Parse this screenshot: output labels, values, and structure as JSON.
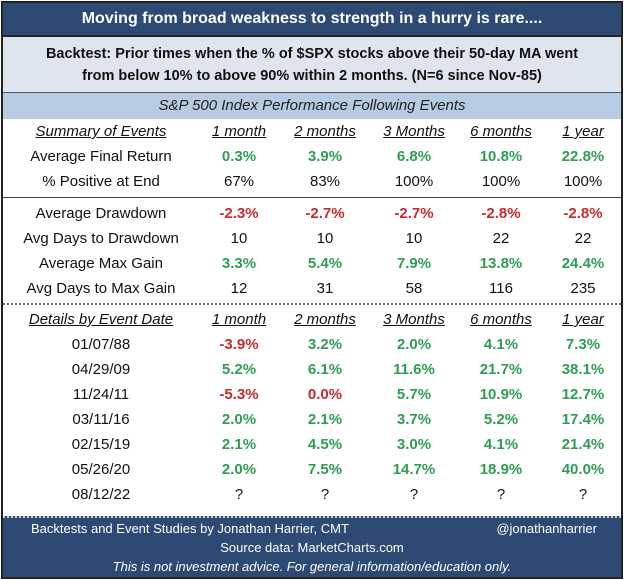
{
  "title": "Moving from broad weakness to strength in a hurry is rare....",
  "subtitle_line1": "Backtest:  Prior times when the % of $SPX stocks above their 50-day MA went",
  "subtitle_line2": "from below 10% to above 90% within 2 months. (N=6 since Nov-85)",
  "section_title": "S&P 500 Index Performance Following Events",
  "colors": {
    "header_bg": "#2c4a73",
    "positive": "#2e9d52",
    "negative": "#c42b2f",
    "section_bg": "#b7cbe2"
  },
  "summary": {
    "header": [
      "Summary of Events",
      "1 month",
      "2 months",
      "3 Months",
      "6 months",
      "1 year"
    ],
    "rows": [
      {
        "cells": [
          "Average Final Return",
          "0.3%",
          "3.9%",
          "6.8%",
          "10.8%",
          "22.8%"
        ],
        "tones": [
          "n",
          "g",
          "g",
          "g",
          "g",
          "g"
        ]
      },
      {
        "cells": [
          "% Positive at End",
          "67%",
          "83%",
          "100%",
          "100%",
          "100%"
        ],
        "tones": [
          "n",
          "n",
          "n",
          "n",
          "n",
          "n"
        ]
      }
    ]
  },
  "drawdown": {
    "rows": [
      {
        "cells": [
          "Average Drawdown",
          "-2.3%",
          "-2.7%",
          "-2.7%",
          "-2.8%",
          "-2.8%"
        ],
        "tones": [
          "n",
          "r",
          "r",
          "r",
          "r",
          "r"
        ]
      },
      {
        "cells": [
          "Avg Days to Drawdown",
          "10",
          "10",
          "10",
          "22",
          "22"
        ],
        "tones": [
          "n",
          "n",
          "n",
          "n",
          "n",
          "n"
        ]
      },
      {
        "cells": [
          "Average Max Gain",
          "3.3%",
          "5.4%",
          "7.9%",
          "13.8%",
          "24.4%"
        ],
        "tones": [
          "n",
          "g",
          "g",
          "g",
          "g",
          "g"
        ]
      },
      {
        "cells": [
          "Avg Days to Max Gain",
          "12",
          "31",
          "58",
          "116",
          "235"
        ],
        "tones": [
          "n",
          "n",
          "n",
          "n",
          "n",
          "n"
        ]
      }
    ]
  },
  "details": {
    "header": [
      "Details by Event Date",
      "1 month",
      "2 months",
      "3 Months",
      "6 months",
      "1 year"
    ],
    "rows": [
      {
        "cells": [
          "01/07/88",
          "-3.9%",
          "3.2%",
          "2.0%",
          "4.1%",
          "7.3%"
        ],
        "tones": [
          "n",
          "r",
          "g",
          "g",
          "g",
          "g"
        ]
      },
      {
        "cells": [
          "04/29/09",
          "5.2%",
          "6.1%",
          "11.6%",
          "21.7%",
          "38.1%"
        ],
        "tones": [
          "n",
          "g",
          "g",
          "g",
          "g",
          "g"
        ]
      },
      {
        "cells": [
          "11/24/11",
          "-5.3%",
          "0.0%",
          "5.7%",
          "10.9%",
          "12.7%"
        ],
        "tones": [
          "n",
          "r",
          "r",
          "g",
          "g",
          "g"
        ]
      },
      {
        "cells": [
          "03/11/16",
          "2.0%",
          "2.1%",
          "3.7%",
          "5.2%",
          "17.4%"
        ],
        "tones": [
          "n",
          "g",
          "g",
          "g",
          "g",
          "g"
        ]
      },
      {
        "cells": [
          "02/15/19",
          "2.1%",
          "4.5%",
          "3.0%",
          "4.1%",
          "21.4%"
        ],
        "tones": [
          "n",
          "g",
          "g",
          "g",
          "g",
          "g"
        ]
      },
      {
        "cells": [
          "05/26/20",
          "2.0%",
          "7.5%",
          "14.7%",
          "18.9%",
          "40.0%"
        ],
        "tones": [
          "n",
          "g",
          "g",
          "g",
          "g",
          "g"
        ]
      },
      {
        "cells": [
          "08/12/22",
          "?",
          "?",
          "?",
          "?",
          "?"
        ],
        "tones": [
          "n",
          "n",
          "n",
          "n",
          "n",
          "n"
        ]
      }
    ]
  },
  "footer": {
    "credit": "Backtests and Event Studies by Jonathan Harrier, CMT",
    "handle": "@jonathanharrier",
    "source": "Source data: MarketCharts.com",
    "disclaimer": "This is not investment advice. For general information/education only."
  }
}
